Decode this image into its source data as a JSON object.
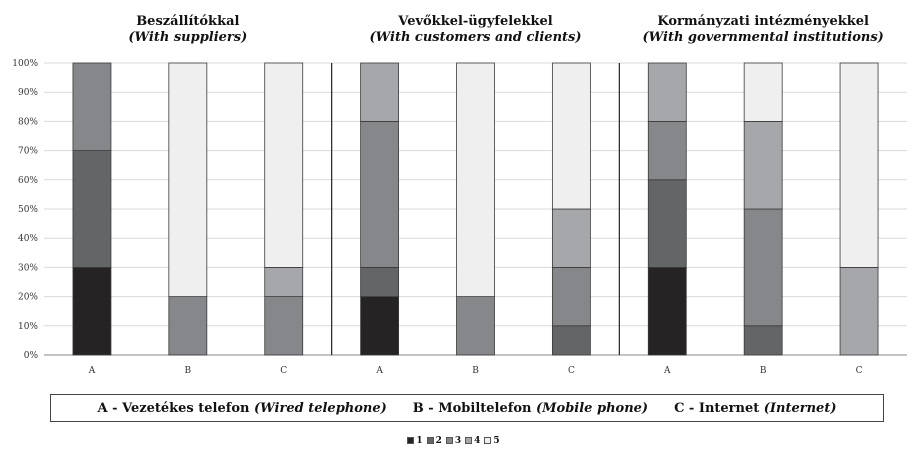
{
  "chart_data": {
    "type": "bar",
    "stacked": true,
    "y_ticks": [
      "0%",
      "10%",
      "20%",
      "30%",
      "40%",
      "50%",
      "60%",
      "70%",
      "80%",
      "90%",
      "100%"
    ],
    "ylim": [
      0,
      100
    ],
    "grid": true,
    "series_colors": [
      "#252324",
      "#646566",
      "#86878a",
      "#a6a7aa",
      "#efefef"
    ],
    "series_legend": [
      {
        "name": "1",
        "color": "#252324"
      },
      {
        "name": "2",
        "color": "#646566"
      },
      {
        "name": "3",
        "color": "#86878a"
      },
      {
        "name": "4",
        "color": "#a6a7aa"
      },
      {
        "name": "5",
        "color": "#efefef"
      }
    ],
    "panels": [
      {
        "title": "Beszállítókkal",
        "subtitle": "(With suppliers)",
        "categories": [
          "A",
          "B",
          "C"
        ],
        "stacks": [
          [
            30,
            40,
            30,
            0,
            0
          ],
          [
            0,
            0,
            20,
            0,
            80
          ],
          [
            0,
            0,
            20,
            10,
            70
          ]
        ]
      },
      {
        "title": "Vevőkkel-ügyfelekkel",
        "subtitle": "(With customers and clients)",
        "categories": [
          "A",
          "B",
          "C"
        ],
        "stacks": [
          [
            20,
            10,
            50,
            20,
            0
          ],
          [
            0,
            0,
            20,
            0,
            80
          ],
          [
            0,
            10,
            20,
            20,
            50
          ]
        ]
      },
      {
        "title": "Kormányzati intézményekkel",
        "subtitle": "(With governmental institutions)",
        "categories": [
          "A",
          "B",
          "C"
        ],
        "stacks": [
          [
            30,
            30,
            20,
            20,
            0
          ],
          [
            0,
            10,
            40,
            30,
            20
          ],
          [
            0,
            0,
            0,
            30,
            70
          ]
        ]
      }
    ],
    "category_legend": {
      "a_text": "A - Vezetékes telefon",
      "a_en": "(Wired telephone)",
      "b_text": "B - Mobiltelefon",
      "b_en": "(Mobile phone)",
      "c_text": "C - Internet",
      "c_en": "(Internet)"
    }
  }
}
